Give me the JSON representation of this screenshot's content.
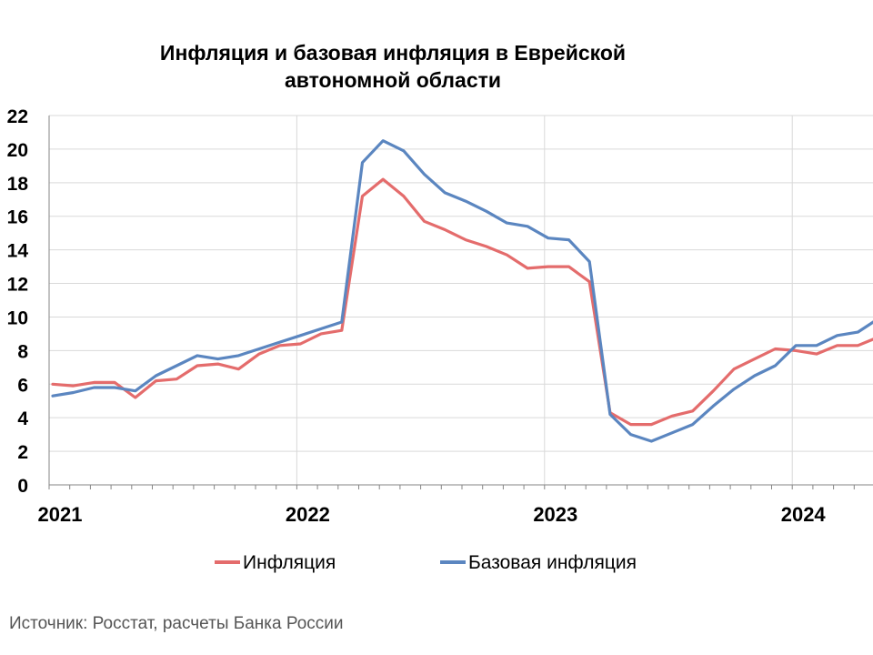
{
  "chart_data": {
    "type": "line",
    "title_lines": [
      "Инфляция и базовая инфляция в Еврейской",
      "автономной области"
    ],
    "xlabel": "",
    "ylabel": "",
    "ylim": [
      0,
      22
    ],
    "yticks": [
      0,
      2,
      4,
      6,
      8,
      10,
      12,
      14,
      16,
      18,
      20,
      22
    ],
    "x_tick_labels": [
      "2021",
      "2022",
      "2023",
      "2024"
    ],
    "x_tick_months": [
      0,
      12,
      24,
      36
    ],
    "xlim_months": [
      0,
      40
    ],
    "grid": "horizontal and vertical",
    "legend_position": "bottom-center",
    "series": [
      {
        "name": "Инфляция",
        "color": "#e46c6c",
        "values": [
          6.0,
          5.9,
          6.1,
          6.1,
          5.2,
          6.2,
          6.3,
          7.1,
          7.2,
          6.9,
          7.8,
          8.3,
          8.4,
          9.0,
          9.2,
          17.2,
          18.2,
          17.2,
          15.7,
          15.2,
          14.6,
          14.2,
          13.7,
          12.9,
          13.0,
          13.0,
          12.1,
          4.3,
          3.6,
          3.6,
          4.1,
          4.4,
          5.6,
          6.9,
          7.5,
          8.1,
          8.0,
          7.8,
          8.3,
          8.3,
          8.8
        ]
      },
      {
        "name": "Базовая инфляция",
        "color": "#5b86c0",
        "values": [
          5.3,
          5.5,
          5.8,
          5.8,
          5.6,
          6.5,
          7.1,
          7.7,
          7.5,
          7.7,
          8.1,
          8.5,
          8.9,
          9.3,
          9.7,
          19.2,
          20.5,
          19.9,
          18.5,
          17.4,
          16.9,
          16.3,
          15.6,
          15.4,
          14.7,
          14.6,
          13.3,
          4.2,
          3.0,
          2.6,
          3.1,
          3.6,
          4.7,
          5.7,
          6.5,
          7.1,
          8.3,
          8.3,
          8.9,
          9.1,
          9.9
        ]
      }
    ],
    "source_note": "Источник: Росстат, расчеты Банка России"
  }
}
